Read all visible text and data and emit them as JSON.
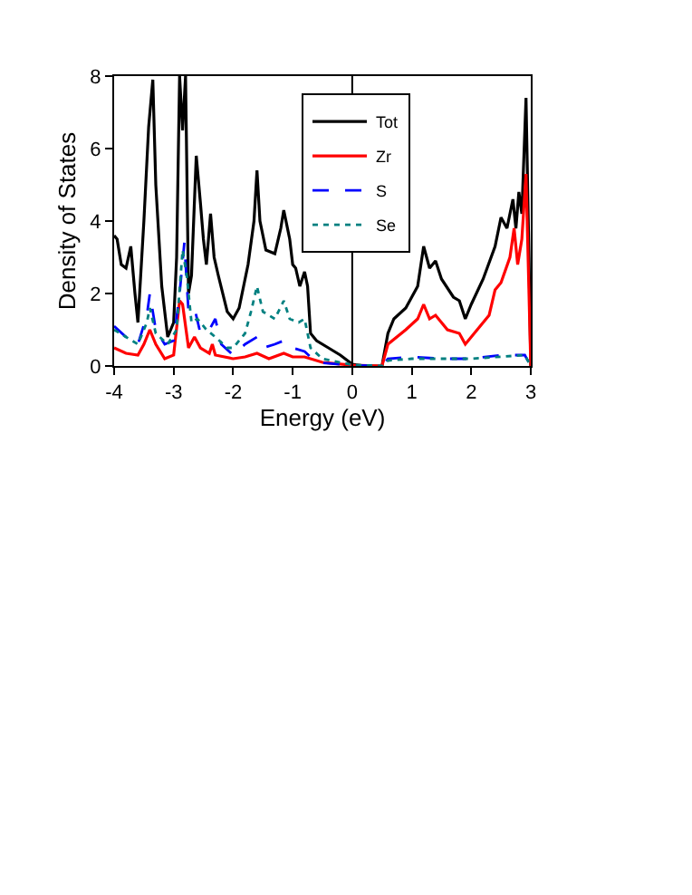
{
  "chart_data": {
    "type": "line",
    "xlabel": "Energy (eV)",
    "ylabel": "Density of States",
    "xlim": [
      -4,
      3
    ],
    "xticks": [
      -4,
      -3,
      -2,
      -1,
      0,
      1,
      2,
      3
    ],
    "ylim": [
      0,
      8
    ],
    "yticks": [
      0,
      2,
      4,
      6,
      8
    ],
    "grid": false,
    "legend": "top",
    "marker": "none",
    "ref_lines": [
      {
        "axis": "x",
        "value": 0,
        "color": "#000000"
      }
    ],
    "series": [
      {
        "name": "Tot",
        "color": "#000000",
        "line_style": "solid",
        "x": [
          -4,
          -3.95,
          -3.88,
          -3.8,
          -3.72,
          -3.65,
          -3.6,
          -3.5,
          -3.42,
          -3.35,
          -3.3,
          -3.2,
          -3.1,
          -3,
          -2.95,
          -2.9,
          -2.85,
          -2.8,
          -2.75,
          -2.7,
          -2.62,
          -2.55,
          -2.5,
          -2.45,
          -2.38,
          -2.32,
          -2.25,
          -2.1,
          -2,
          -1.9,
          -1.75,
          -1.65,
          -1.6,
          -1.55,
          -1.45,
          -1.3,
          -1.2,
          -1.15,
          -1.05,
          -1,
          -0.95,
          -0.88,
          -0.8,
          -0.75,
          -0.7,
          -0.6,
          -0.4,
          -0.2,
          0,
          0.2,
          0.5,
          0.6,
          0.7,
          0.9,
          1.1,
          1.2,
          1.3,
          1.4,
          1.5,
          1.7,
          1.8,
          1.9,
          2,
          2.2,
          2.4,
          2.5,
          2.6,
          2.7,
          2.75,
          2.8,
          2.85,
          2.92,
          2.97,
          3
        ],
        "values": [
          3.6,
          3.5,
          2.8,
          2.7,
          3.3,
          2,
          1.2,
          4,
          6.6,
          7.9,
          5,
          2.2,
          0.8,
          1.2,
          3,
          8,
          6.5,
          8,
          2,
          2.5,
          5.8,
          4.5,
          3.5,
          2.8,
          4.2,
          3,
          2.5,
          1.5,
          1.3,
          1.6,
          2.8,
          4,
          5.4,
          4,
          3.2,
          3.1,
          3.8,
          4.3,
          3.5,
          2.8,
          2.7,
          2.2,
          2.6,
          2.2,
          0.9,
          0.7,
          0.5,
          0.3,
          0.05,
          0,
          0,
          0.9,
          1.3,
          1.6,
          2.2,
          3.3,
          2.7,
          2.9,
          2.4,
          1.9,
          1.8,
          1.3,
          1.7,
          2.4,
          3.3,
          4.1,
          3.8,
          4.6,
          3.8,
          4.8,
          4.2,
          7.4,
          3,
          0
        ]
      },
      {
        "name": "Zr",
        "color": "#ff0000",
        "line_style": "solid",
        "x": [
          -4,
          -3.8,
          -3.6,
          -3.5,
          -3.4,
          -3.3,
          -3.15,
          -3,
          -2.9,
          -2.85,
          -2.75,
          -2.65,
          -2.55,
          -2.4,
          -2.35,
          -2.3,
          -2,
          -1.8,
          -1.6,
          -1.4,
          -1.15,
          -1,
          -0.8,
          -0.5,
          0,
          0.5,
          0.6,
          0.9,
          1.1,
          1.2,
          1.3,
          1.4,
          1.6,
          1.8,
          1.9,
          2.1,
          2.3,
          2.4,
          2.5,
          2.65,
          2.72,
          2.78,
          2.85,
          2.92,
          2.97,
          3
        ],
        "values": [
          0.5,
          0.35,
          0.3,
          0.6,
          1,
          0.6,
          0.2,
          0.3,
          1.8,
          1.7,
          0.5,
          0.8,
          0.5,
          0.35,
          0.6,
          0.3,
          0.2,
          0.25,
          0.35,
          0.2,
          0.35,
          0.25,
          0.25,
          0.1,
          0.02,
          0,
          0.6,
          1,
          1.3,
          1.7,
          1.3,
          1.4,
          1,
          0.9,
          0.6,
          1,
          1.4,
          2.1,
          2.3,
          3,
          3.8,
          2.8,
          3.5,
          5.3,
          2,
          0
        ]
      },
      {
        "name": "S",
        "color": "#0000ff",
        "line_style": "dashed",
        "x": [
          -4,
          -3.8,
          -3.6,
          -3.45,
          -3.4,
          -3.3,
          -3.15,
          -3,
          -2.9,
          -2.82,
          -2.75,
          -2.65,
          -2.55,
          -2.4,
          -2.3,
          -2.2,
          -2,
          -1.8,
          -1.6,
          -1.5,
          -1.3,
          -1.15,
          -1,
          -0.8,
          -0.6,
          0,
          0.5,
          0.6,
          1,
          1.5,
          2,
          2.5,
          2.9,
          3
        ],
        "values": [
          1.1,
          0.8,
          0.6,
          1.4,
          2,
          1,
          0.6,
          0.7,
          2,
          3.4,
          1.5,
          1.6,
          0.9,
          1,
          1.3,
          0.6,
          0.3,
          0.6,
          0.8,
          0.5,
          0.6,
          0.7,
          0.5,
          0.4,
          0.1,
          0.02,
          0,
          0.2,
          0.25,
          0.2,
          0.2,
          0.3,
          0.3,
          0
        ]
      },
      {
        "name": "Se",
        "color": "#008080",
        "line_style": "dotted",
        "x": [
          -4,
          -3.8,
          -3.6,
          -3.45,
          -3.4,
          -3.3,
          -3.1,
          -2.95,
          -2.85,
          -2.78,
          -2.7,
          -2.6,
          -2.45,
          -2.3,
          -2.1,
          -2,
          -1.8,
          -1.7,
          -1.6,
          -1.5,
          -1.3,
          -1.15,
          -1.05,
          -0.9,
          -0.8,
          -0.7,
          -0.5,
          0,
          0.5,
          0.6,
          1,
          2,
          2.9,
          3
        ],
        "values": [
          1,
          0.8,
          0.6,
          1.2,
          1.6,
          0.9,
          0.6,
          1,
          3.2,
          2.5,
          1.2,
          1.3,
          1,
          0.8,
          0.5,
          0.5,
          0.9,
          1.5,
          2.2,
          1.5,
          1.3,
          1.8,
          1.3,
          1.2,
          1.3,
          0.5,
          0.2,
          0.03,
          0,
          0.15,
          0.2,
          0.2,
          0.3,
          0
        ]
      }
    ]
  }
}
